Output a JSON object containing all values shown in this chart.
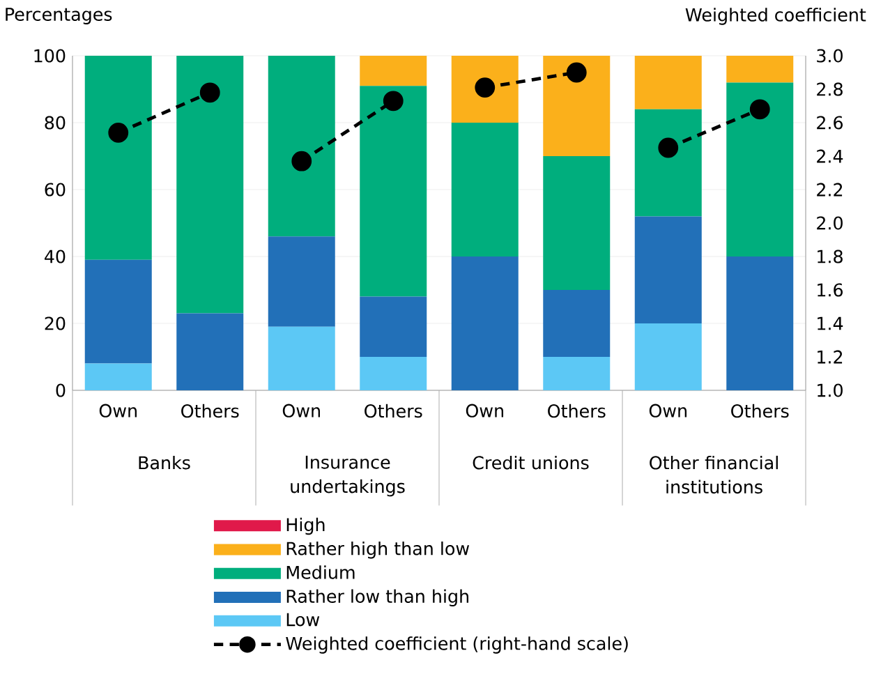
{
  "chart_data": {
    "type": "bar",
    "stacked": true,
    "ylabel": "Percentages",
    "y2label": "Weighted coefficient",
    "categories": [
      "Own",
      "Others",
      "Own",
      "Others",
      "Own",
      "Others",
      "Own",
      "Others"
    ],
    "annotations": [
      "Banks",
      "Insurance undertakings",
      "Credit unions",
      "Other financial institutions"
    ],
    "ylim": [
      0,
      100
    ],
    "yticks": [
      0,
      20,
      40,
      60,
      80,
      100
    ],
    "y2lim": [
      1,
      3
    ],
    "y2ticks": [
      {
        "value": 1,
        "label": "1.0"
      },
      {
        "value": 1.2,
        "label": "1.2"
      },
      {
        "value": 1.4,
        "label": "1.4"
      },
      {
        "value": 1.6,
        "label": "1.6"
      },
      {
        "value": 1.8,
        "label": "1.8"
      },
      {
        "value": 2,
        "label": "2.0"
      },
      {
        "value": 2.2,
        "label": "2.2"
      },
      {
        "value": 2.4,
        "label": "2.4"
      },
      {
        "value": 2.6,
        "label": "2.6"
      },
      {
        "value": 2.8,
        "label": "2.8"
      },
      {
        "value": 3,
        "label": "3.0"
      }
    ],
    "grid": "y",
    "legend": "bottom",
    "series": [
      {
        "name": "Low",
        "color": "#5cc8f5",
        "values": [
          8,
          0,
          19,
          10,
          0,
          10,
          20,
          0
        ]
      },
      {
        "name": "Rather low than high",
        "color": "#2270b8",
        "values": [
          31,
          23,
          27,
          18,
          40,
          20,
          32,
          40
        ]
      },
      {
        "name": "Medium",
        "color": "#00ae7d",
        "values": [
          61,
          77,
          54,
          63,
          40,
          40,
          32,
          52
        ]
      },
      {
        "name": "Rather high than low",
        "color": "#fbb01b",
        "values": [
          0,
          0,
          0,
          9,
          20,
          30,
          16,
          8
        ]
      },
      {
        "name": "High",
        "color": "#e0194a",
        "values": [
          0,
          0,
          0,
          0,
          0,
          0,
          0,
          0
        ]
      },
      {
        "name": "Weighted coefficient (right-hand scale)",
        "type": "line",
        "axis": "y2",
        "color": "#000000",
        "marker": "circle",
        "line_style": "dashed",
        "values": [
          2.54,
          2.78,
          2.37,
          2.73,
          2.81,
          2.9,
          2.45,
          2.68
        ]
      }
    ]
  }
}
